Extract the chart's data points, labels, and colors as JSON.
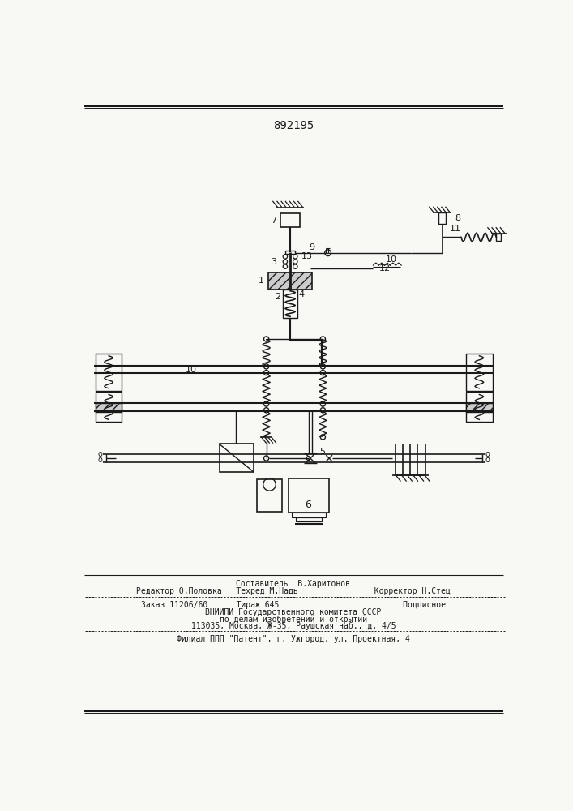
{
  "patent_number": "892195",
  "background_color": "#f8f8f5",
  "line_color": "#1a1a1a",
  "footer_lines": [
    "Составитель  В.Харитонов",
    "Редактор О.Половка   Техред М.Надь                Корректор Н.Стец",
    "Заказ 11206/60      Тираж 645                          Подписное",
    "ВНИИПИ Государственного комитета СССР",
    "по делам изобретений и открытий",
    "113035, Москва, Ж-35, Раушская наб., д. 4/5",
    "Филиал ППП \"Патент\", г. Ужгород, ул. Проектная, 4"
  ]
}
